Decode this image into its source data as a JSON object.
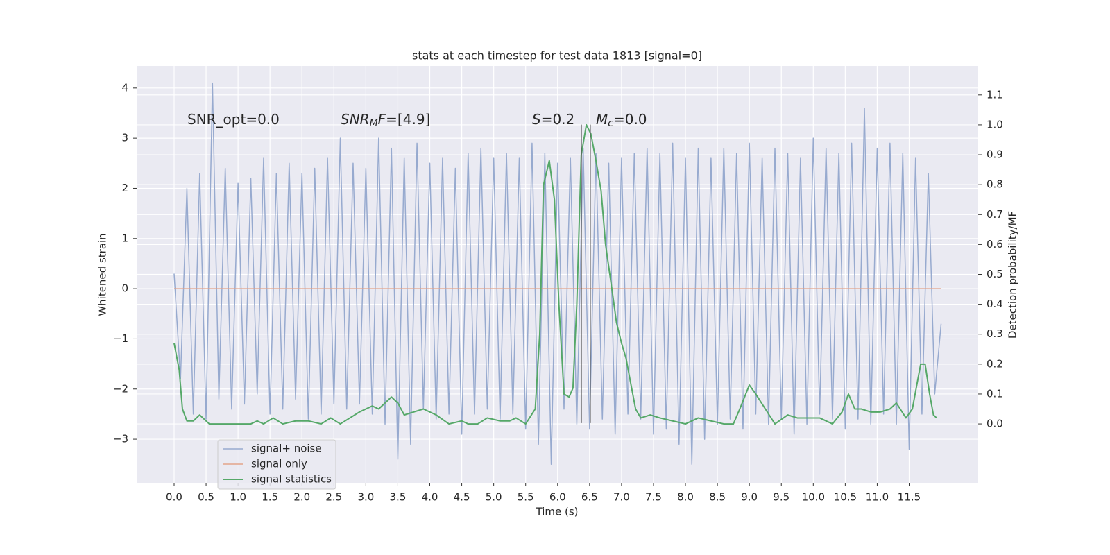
{
  "chart_data": {
    "type": "line",
    "title": "stats at each timestep for test data 1813 [signal=0]",
    "x_label": "Time (s)",
    "y_label": "Whitened strain",
    "y2_label": "Detection probability/MF",
    "xlim": [
      -0.586,
      12.58
    ],
    "ylim": [
      -3.87,
      4.44
    ],
    "y2lim": [
      -0.197,
      1.197
    ],
    "xticks": [
      {
        "value": 0,
        "label": "0.0"
      },
      {
        "value": 0.5,
        "label": "0.5"
      },
      {
        "value": 1,
        "label": "1.0"
      },
      {
        "value": 1.5,
        "label": "1.5"
      },
      {
        "value": 2,
        "label": "2.0"
      },
      {
        "value": 2.5,
        "label": "2.5"
      },
      {
        "value": 3,
        "label": "3.0"
      },
      {
        "value": 3.5,
        "label": "3.5"
      },
      {
        "value": 4,
        "label": "4.0"
      },
      {
        "value": 4.5,
        "label": "4.5"
      },
      {
        "value": 5,
        "label": "5.0"
      },
      {
        "value": 5.5,
        "label": "5.5"
      },
      {
        "value": 6,
        "label": "6.0"
      },
      {
        "value": 6.5,
        "label": "6.5"
      },
      {
        "value": 7,
        "label": "7.0"
      },
      {
        "value": 7.5,
        "label": "7.5"
      },
      {
        "value": 8,
        "label": "8.0"
      },
      {
        "value": 8.5,
        "label": "8.5"
      },
      {
        "value": 9,
        "label": "9.0"
      },
      {
        "value": 9.5,
        "label": "9.5"
      },
      {
        "value": 10,
        "label": "10.0"
      },
      {
        "value": 10.5,
        "label": "10.5"
      },
      {
        "value": 11,
        "label": "11.0"
      },
      {
        "value": 11.5,
        "label": "11.5"
      }
    ],
    "yticks": [
      {
        "value": -3,
        "label": "−3"
      },
      {
        "value": -2,
        "label": "−2"
      },
      {
        "value": -1,
        "label": "−1"
      },
      0,
      1,
      2,
      3,
      4
    ],
    "y2ticks": [
      {
        "value": 0,
        "label": "0.0"
      },
      {
        "value": 0.1,
        "label": "0.1"
      },
      {
        "value": 0.2,
        "label": "0.2"
      },
      {
        "value": 0.3,
        "label": "0.3"
      },
      {
        "value": 0.4,
        "label": "0.4"
      },
      {
        "value": 0.5,
        "label": "0.5"
      },
      {
        "value": 0.6,
        "label": "0.6"
      },
      {
        "value": 0.7,
        "label": "0.7"
      },
      {
        "value": 0.8,
        "label": "0.8"
      },
      {
        "value": 0.9,
        "label": "0.9"
      },
      {
        "value": 1.0,
        "label": "1.0"
      },
      {
        "value": 1.1,
        "label": "1.1"
      }
    ],
    "grid": true,
    "legend": "lower left",
    "series": [
      {
        "name": "signal+ noise",
        "color": "#97aacf",
        "x": [
          0,
          0.1,
          0.2,
          0.3,
          0.4,
          0.5,
          0.6,
          0.7,
          0.8,
          0.9,
          1,
          1.1,
          1.2,
          1.3,
          1.4,
          1.5,
          1.6,
          1.7,
          1.8,
          1.9,
          2,
          2.1,
          2.2,
          2.3,
          2.4,
          2.5,
          2.6,
          2.7,
          2.8,
          2.9,
          3,
          3.1,
          3.2,
          3.3,
          3.4,
          3.5,
          3.6,
          3.7,
          3.8,
          3.9,
          4,
          4.1,
          4.2,
          4.3,
          4.4,
          4.5,
          4.6,
          4.7,
          4.8,
          4.9,
          5,
          5.1,
          5.2,
          5.3,
          5.4,
          5.5,
          5.6,
          5.7,
          5.8,
          5.9,
          6,
          6.1,
          6.2,
          6.3,
          6.4,
          6.5,
          6.6,
          6.7,
          6.8,
          6.9,
          7,
          7.1,
          7.2,
          7.3,
          7.4,
          7.5,
          7.6,
          7.7,
          7.8,
          7.9,
          8,
          8.1,
          8.2,
          8.3,
          8.4,
          8.5,
          8.6,
          8.7,
          8.8,
          8.9,
          9,
          9.1,
          9.2,
          9.3,
          9.4,
          9.5,
          9.6,
          9.7,
          9.8,
          9.9,
          10,
          10.1,
          10.2,
          10.3,
          10.4,
          10.5,
          10.6,
          10.7,
          10.8,
          10.9,
          11,
          11.1,
          11.2,
          11.3,
          11.4,
          11.5,
          11.6,
          11.7,
          11.8,
          11.9,
          12
        ],
        "values": [
          0.3,
          -1.8,
          2.0,
          -2.5,
          2.3,
          -2.6,
          4.1,
          -2.2,
          2.4,
          -2.4,
          2.1,
          -2.3,
          2.2,
          -2.1,
          2.6,
          -2.5,
          2.3,
          -2.4,
          2.5,
          -2.2,
          2.3,
          -2.6,
          2.4,
          -2.5,
          2.6,
          -2.3,
          3.0,
          -2.4,
          2.5,
          -2.3,
          2.4,
          -2.5,
          3.0,
          -2.7,
          2.8,
          -3.4,
          2.6,
          -3.1,
          2.9,
          -2.4,
          2.5,
          -2.6,
          2.6,
          -2.5,
          2.4,
          -2.9,
          2.7,
          -2.5,
          2.8,
          -2.4,
          2.6,
          -2.6,
          2.7,
          -2.5,
          2.6,
          -2.8,
          2.9,
          -3.1,
          2.7,
          -3.5,
          2.5,
          -2.4,
          2.6,
          -2.7,
          2.8,
          -2.8,
          2.7,
          -2.6,
          2.5,
          -2.9,
          2.6,
          -2.5,
          2.7,
          -2.6,
          2.8,
          -2.9,
          2.7,
          -2.8,
          2.9,
          -3.1,
          2.6,
          -3.5,
          2.8,
          -3.0,
          2.6,
          -2.7,
          2.8,
          -2.6,
          2.7,
          -2.8,
          2.9,
          -2.5,
          2.6,
          -2.7,
          2.8,
          -2.6,
          2.7,
          -2.9,
          2.6,
          -2.7,
          3.0,
          -2.5,
          2.8,
          -2.6,
          2.7,
          -2.8,
          2.9,
          -2.6,
          3.6,
          -2.7,
          2.8,
          -2.5,
          2.9,
          -2.7,
          2.7,
          -3.2,
          2.6,
          -2.5,
          2.3,
          -2.1,
          -0.7
        ]
      },
      {
        "name": "signal only",
        "color": "#e3a48a",
        "x": [
          0,
          12
        ],
        "values": [
          0,
          0
        ]
      },
      {
        "name": "signal statistics",
        "color": "#55a868",
        "axis": "y2",
        "x": [
          0,
          0.08,
          0.13,
          0.2,
          0.3,
          0.4,
          0.55,
          0.7,
          0.9,
          1.2,
          1.3,
          1.4,
          1.55,
          1.7,
          1.9,
          2.1,
          2.3,
          2.45,
          2.6,
          2.75,
          2.9,
          3.1,
          3.2,
          3.3,
          3.4,
          3.5,
          3.6,
          3.75,
          3.9,
          4.1,
          4.3,
          4.5,
          4.6,
          4.75,
          4.9,
          5.1,
          5.25,
          5.35,
          5.5,
          5.65,
          5.72,
          5.78,
          5.87,
          5.95,
          6.02,
          6.1,
          6.18,
          6.24,
          6.3,
          6.37,
          6.45,
          6.52,
          6.6,
          6.68,
          6.75,
          6.85,
          6.92,
          7.0,
          7.07,
          7.14,
          7.22,
          7.3,
          7.45,
          7.6,
          7.8,
          8.0,
          8.2,
          8.4,
          8.6,
          8.75,
          8.85,
          9.0,
          9.1,
          9.25,
          9.4,
          9.6,
          9.75,
          9.9,
          10.1,
          10.3,
          10.45,
          10.55,
          10.65,
          10.75,
          10.9,
          11.05,
          11.2,
          11.3,
          11.45,
          11.55,
          11.68,
          11.75,
          11.82,
          11.88,
          11.93
        ],
        "values": [
          0.27,
          0.18,
          0.05,
          0.01,
          0.01,
          0.03,
          0.0,
          0.0,
          0.0,
          0.0,
          0.01,
          0.0,
          0.02,
          0.0,
          0.01,
          0.01,
          0.0,
          0.02,
          0.0,
          0.02,
          0.04,
          0.06,
          0.05,
          0.07,
          0.09,
          0.07,
          0.03,
          0.04,
          0.05,
          0.03,
          0.0,
          0.01,
          0.0,
          0.0,
          0.02,
          0.01,
          0.01,
          0.02,
          0.0,
          0.05,
          0.3,
          0.8,
          0.88,
          0.75,
          0.4,
          0.1,
          0.09,
          0.12,
          0.4,
          0.9,
          1.0,
          0.97,
          0.88,
          0.78,
          0.6,
          0.45,
          0.34,
          0.27,
          0.22,
          0.14,
          0.05,
          0.02,
          0.03,
          0.02,
          0.01,
          0.0,
          0.02,
          0.01,
          0.0,
          0.0,
          0.05,
          0.13,
          0.1,
          0.05,
          0.0,
          0.03,
          0.02,
          0.02,
          0.02,
          0.0,
          0.04,
          0.1,
          0.05,
          0.05,
          0.04,
          0.04,
          0.05,
          0.07,
          0.02,
          0.05,
          0.2,
          0.2,
          0.1,
          0.03,
          0.02
        ]
      }
    ],
    "vlines": {
      "x": [
        6.37,
        6.51
      ],
      "ymin": -2.68,
      "ymax": 3.27,
      "color": "#555555"
    },
    "annotations": [
      [
        {
          "text": "SNR_opt=0.0"
        }
      ],
      [
        {
          "text": "SNR",
          "style": "italic"
        },
        {
          "text": "M",
          "style": "sub"
        },
        {
          "text": "F",
          "style": "italic"
        },
        {
          "text": "=[4.9]"
        }
      ],
      [
        {
          "text": "S",
          "style": "italic"
        },
        {
          "text": "=0.2"
        }
      ],
      [
        {
          "text": "M",
          "style": "italic"
        },
        {
          "text": "c",
          "style": "sub"
        },
        {
          "text": "=0.0"
        }
      ]
    ]
  }
}
